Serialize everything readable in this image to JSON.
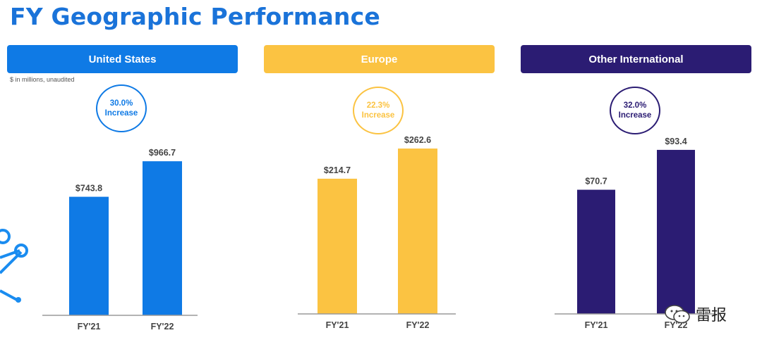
{
  "title": "FY Geographic Performance",
  "note": "$ in millions, unaudited",
  "colors": {
    "us": "#0f7ae5",
    "europe": "#fbc342",
    "intl": "#2b1c73"
  },
  "chart_data": [
    {
      "type": "bar",
      "title": "United States",
      "categories": [
        "FY'21",
        "FY'22"
      ],
      "values": [
        743.8,
        966.7
      ],
      "labels": [
        "$743.8",
        "$966.7"
      ],
      "change": "30.0%",
      "change_label": "Increase",
      "color": "#0f7ae5",
      "ylim": [
        0,
        1210
      ]
    },
    {
      "type": "bar",
      "title": "Europe",
      "categories": [
        "FY'21",
        "FY'22"
      ],
      "values": [
        214.7,
        262.6
      ],
      "labels": [
        "$214.7",
        "$262.6"
      ],
      "change": "22.3%",
      "change_label": "Increase",
      "color": "#fbc342",
      "ylim": [
        0,
        304
      ]
    },
    {
      "type": "bar",
      "title": "Other International",
      "categories": [
        "FY'21",
        "FY'22"
      ],
      "values": [
        70.7,
        93.4
      ],
      "labels": [
        "$70.7",
        "$93.4"
      ],
      "change": "32.0%",
      "change_label": "Increase",
      "color": "#2b1c73",
      "ylim": [
        0,
        109
      ]
    }
  ],
  "watermark": {
    "text": "雷报",
    "icon": "wechat-icon"
  }
}
